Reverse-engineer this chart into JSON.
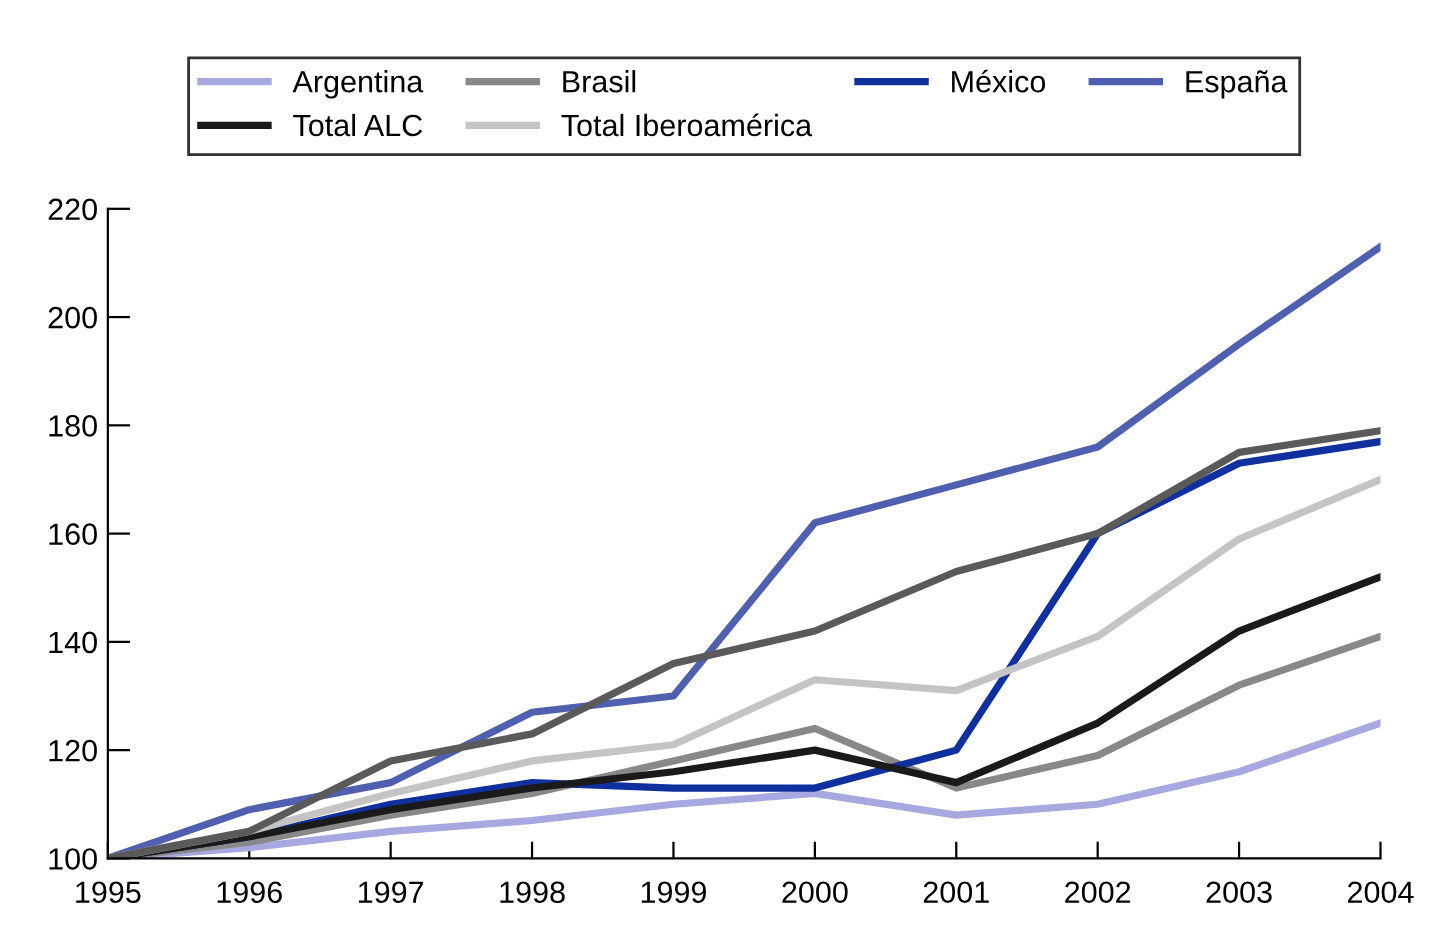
{
  "chart_data": {
    "type": "line",
    "categories": [
      "1995",
      "1996",
      "1997",
      "1998",
      "1999",
      "2000",
      "2001",
      "2002",
      "2003",
      "2004"
    ],
    "series": [
      {
        "name": "Argentina",
        "color": "#a8a8e0",
        "values": [
          100,
          102,
          105,
          107,
          110,
          112,
          108,
          110,
          116,
          125
        ]
      },
      {
        "name": "Brasil",
        "color": "#888888",
        "values": [
          100,
          103,
          108,
          112,
          118,
          124,
          113,
          119,
          132,
          141
        ]
      },
      {
        "name": "México",
        "color": "#1030a0",
        "values": [
          100,
          104,
          110,
          114,
          113,
          113,
          120,
          160,
          173,
          177
        ]
      },
      {
        "name": "España",
        "color": "#5060b0",
        "values": [
          100,
          109,
          114,
          127,
          130,
          162,
          169,
          176,
          195,
          213
        ]
      },
      {
        "name": "Total ALC",
        "color": "#1a1a1a",
        "values": [
          100,
          104,
          109,
          113,
          116,
          120,
          114,
          125,
          142,
          152
        ]
      },
      {
        "name": "Total Iberoamérica",
        "color": "#c4c4c4",
        "values": [
          100,
          105,
          112,
          118,
          121,
          133,
          131,
          141,
          159,
          170
        ]
      },
      {
        "color": "#5a5a5a",
        "values": [
          100,
          105,
          118,
          123,
          136,
          142,
          153,
          160,
          175,
          179
        ]
      }
    ],
    "ylim": [
      100,
      220
    ],
    "yticks": [
      100,
      120,
      140,
      160,
      180,
      200,
      220
    ],
    "grid": false,
    "legend": "top",
    "marker": "none",
    "line_style": "solid"
  }
}
